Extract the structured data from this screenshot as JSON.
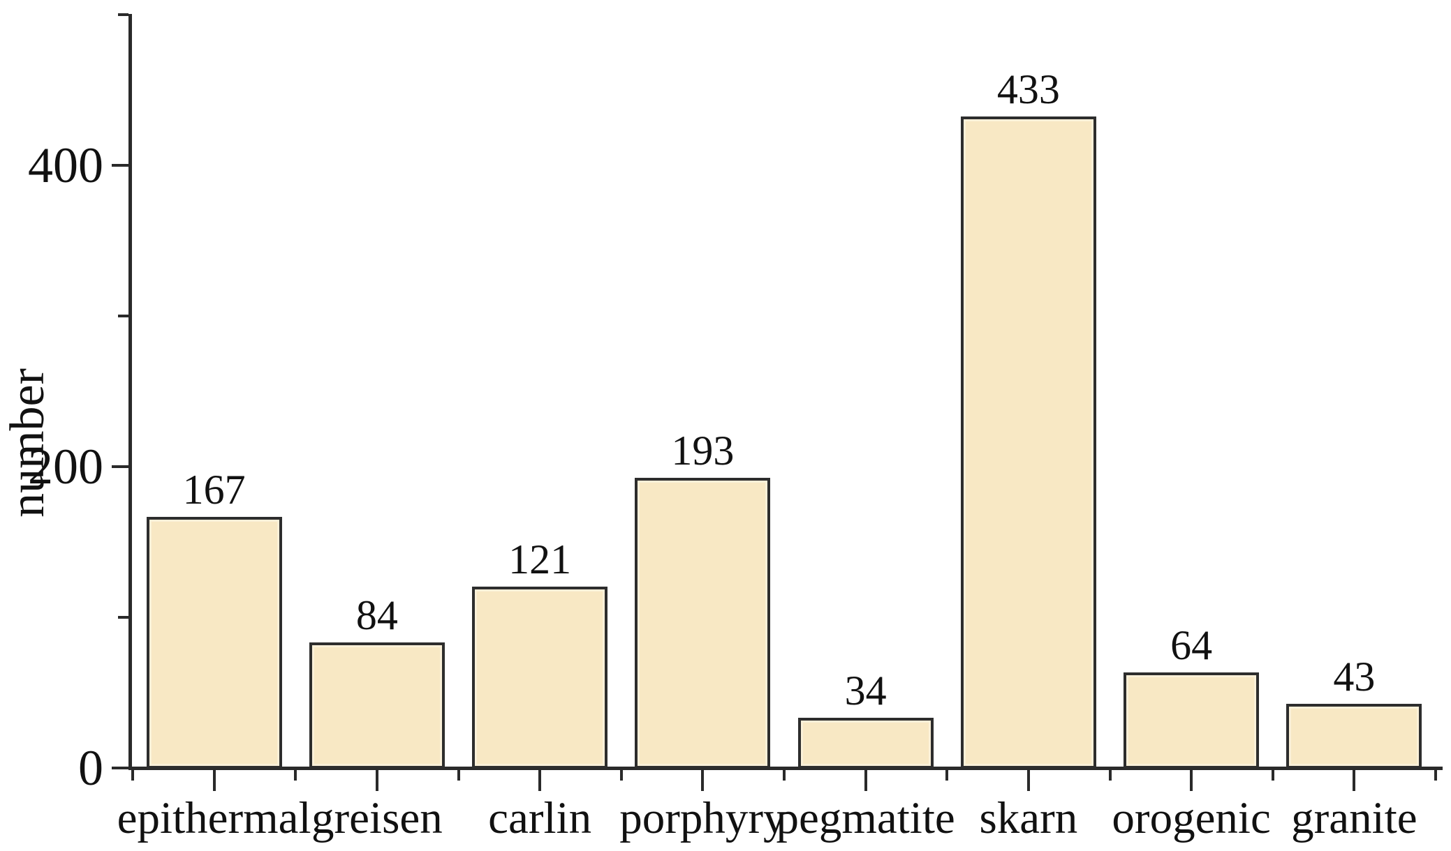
{
  "chart_data": {
    "type": "bar",
    "title": "",
    "xlabel": "",
    "ylabel": "number",
    "categories": [
      "epithermal",
      "greisen",
      "carlin",
      "porphyry",
      "pegmatite",
      "skarn",
      "orogenic",
      "granite"
    ],
    "values": [
      167,
      84,
      121,
      193,
      34,
      433,
      64,
      43
    ],
    "value_labels": [
      "167",
      "84",
      "121",
      "193",
      "34",
      "433",
      "64",
      "43"
    ],
    "ylim": [
      0,
      500
    ],
    "yticks_major": {
      "values": [
        0,
        200,
        400
      ],
      "labels": [
        "0",
        "200",
        "400"
      ]
    },
    "yticks_minor": [
      100,
      300,
      500
    ],
    "grid": false,
    "legend": "none",
    "colors": {
      "bar_fill": "#f8e8c4",
      "bar_border": "#2d2d2d",
      "axis": "#2a2a2a",
      "text": "#111111",
      "background": "#ffffff"
    }
  }
}
